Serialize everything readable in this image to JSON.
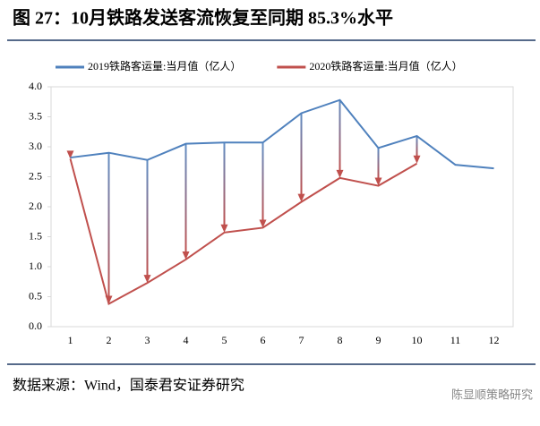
{
  "chart_data": {
    "type": "line",
    "title": "图 27：10月铁路发送客流恢复至同期 85.3%水平",
    "source": "数据来源：Wind，国泰君安证券研究",
    "watermark": "陈显顺策略研究",
    "categories": [
      "1",
      "2",
      "3",
      "4",
      "5",
      "6",
      "7",
      "8",
      "9",
      "10",
      "11",
      "12"
    ],
    "series": [
      {
        "name": "2019铁路客运量:当月值（亿人）",
        "color": "#4f81bd",
        "values": [
          2.82,
          2.9,
          2.78,
          3.05,
          3.07,
          3.07,
          3.56,
          3.78,
          2.98,
          3.18,
          2.7,
          2.64
        ]
      },
      {
        "name": "2020铁路客运量:当月值（亿人）",
        "color": "#c0504d",
        "values": [
          2.8,
          0.38,
          0.73,
          1.12,
          1.57,
          1.65,
          2.08,
          2.48,
          2.35,
          2.72,
          null,
          null
        ]
      }
    ],
    "ylim": [
      0,
      4
    ],
    "yticks": [
      {
        "value": 0,
        "label": "0.0"
      },
      {
        "value": 0.5,
        "label": "0.5"
      },
      {
        "value": 1,
        "label": "1.0"
      },
      {
        "value": 1.5,
        "label": "1.5"
      },
      {
        "value": 2,
        "label": "2.0"
      },
      {
        "value": 2.5,
        "label": "2.5"
      },
      {
        "value": 3,
        "label": "3.0"
      },
      {
        "value": 3.5,
        "label": "3.5"
      },
      {
        "value": 4,
        "label": "4.0"
      }
    ],
    "grid": false,
    "legend": "top"
  }
}
